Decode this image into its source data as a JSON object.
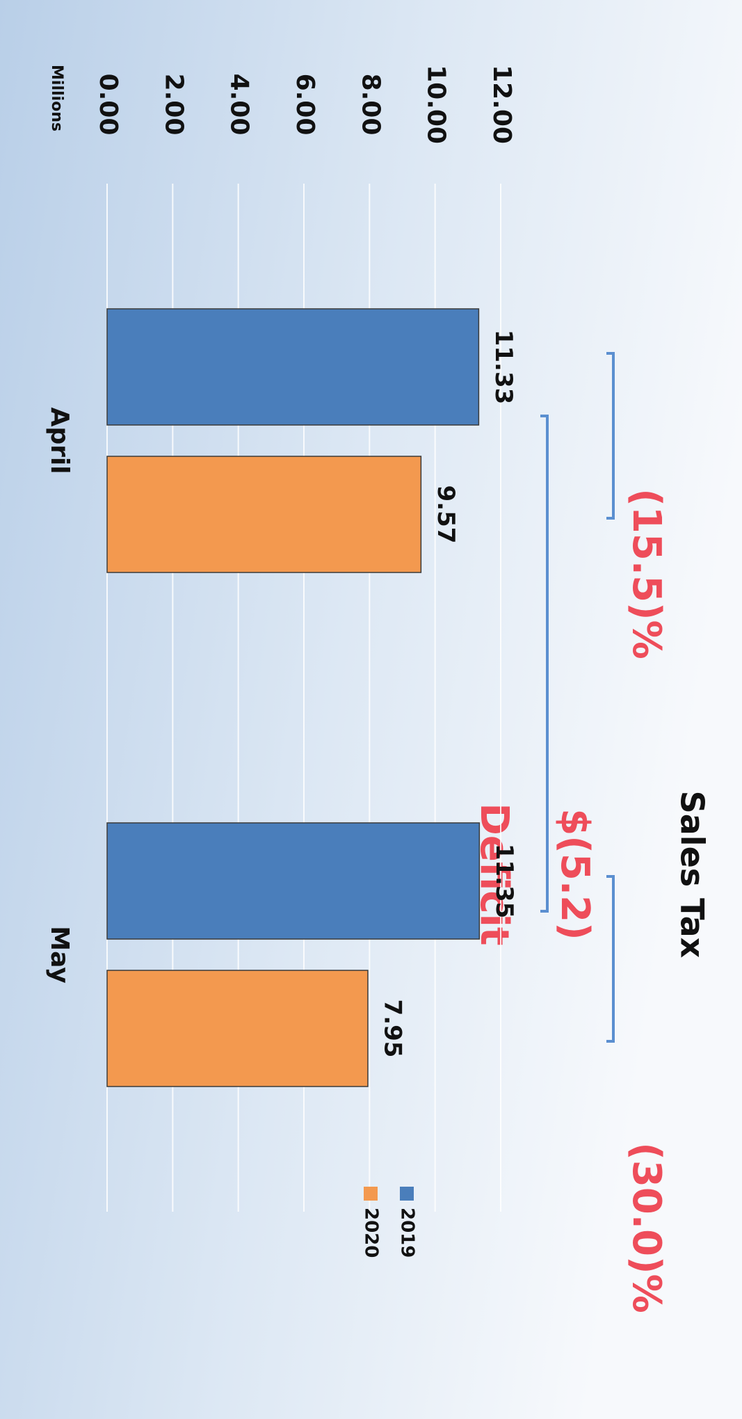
{
  "chart_data": {
    "type": "bar",
    "title": "Sales Tax",
    "y_unit_label": "Millions",
    "categories": [
      "April",
      "May"
    ],
    "series": [
      {
        "name": "2019",
        "color": "#4a7ebb",
        "values": [
          11.33,
          11.35
        ]
      },
      {
        "name": "2020",
        "color": "#f3994f",
        "values": [
          9.57,
          7.95
        ]
      }
    ],
    "ylim": [
      0,
      12
    ],
    "yticks": [
      {
        "value": 0,
        "label": "0.00"
      },
      {
        "value": 2,
        "label": "2.00"
      },
      {
        "value": 4,
        "label": "4.00"
      },
      {
        "value": 6,
        "label": "6.00"
      },
      {
        "value": 8,
        "label": "8.00"
      },
      {
        "value": 10,
        "label": "10.00"
      },
      {
        "value": 12,
        "label": "12.00"
      }
    ],
    "grid": true,
    "legend": "right",
    "annotations": [
      "(15.5)%",
      "(30.0)%",
      "$(5.2)",
      "Deficit"
    ]
  }
}
